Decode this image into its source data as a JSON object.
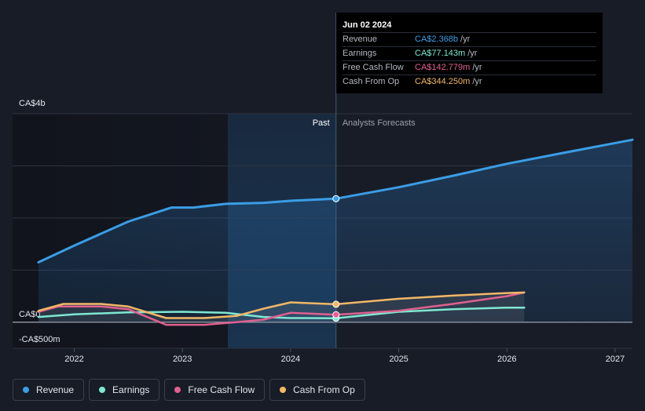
{
  "tooltip": {
    "date": "Jun 02 2024",
    "rows": [
      {
        "label": "Revenue",
        "value": "CA$2.368b",
        "unit": "/yr",
        "color": "#3b9de6"
      },
      {
        "label": "Earnings",
        "value": "CA$77.143m",
        "unit": "/yr",
        "color": "#7ee8d2"
      },
      {
        "label": "Free Cash Flow",
        "value": "CA$142.779m",
        "unit": "/yr",
        "color": "#e0608f"
      },
      {
        "label": "Cash From Op",
        "value": "CA$344.250m",
        "unit": "/yr",
        "color": "#f2b866"
      }
    ]
  },
  "regions": {
    "past_label": "Past",
    "forecast_label": "Analysts Forecasts"
  },
  "legend": [
    {
      "label": "Revenue",
      "color": "#3b9de6"
    },
    {
      "label": "Earnings",
      "color": "#7ee8d2"
    },
    {
      "label": "Free Cash Flow",
      "color": "#e0608f"
    },
    {
      "label": "Cash From Op",
      "color": "#f2b866"
    }
  ],
  "chart_data": {
    "type": "line",
    "ylim": [
      -0.5,
      4.0
    ],
    "xlim": [
      2021.43,
      2027.16
    ],
    "divider_x": 2024.42,
    "highlight_start_x": 2023.42,
    "y_tick_labels": [
      {
        "value": 4.0,
        "label": "CA$4b"
      },
      {
        "value": 0.0,
        "label": "CA$0"
      },
      {
        "value": -0.5,
        "label": "-CA$500m"
      }
    ],
    "y_gridlines": [
      4.0,
      3.0,
      2.0,
      1.0,
      0.0
    ],
    "x_ticks": [
      {
        "value": 2022,
        "label": "2022"
      },
      {
        "value": 2023,
        "label": "2023"
      },
      {
        "value": 2024,
        "label": "2024"
      },
      {
        "value": 2025,
        "label": "2025"
      },
      {
        "value": 2026,
        "label": "2026"
      },
      {
        "value": 2027,
        "label": "2027"
      }
    ],
    "series": [
      {
        "name": "Revenue",
        "color": "#3b9de6",
        "area": true,
        "marker_x": 2024.42,
        "points": [
          [
            2021.67,
            1.15
          ],
          [
            2022.0,
            1.47
          ],
          [
            2022.5,
            1.93
          ],
          [
            2022.9,
            2.2
          ],
          [
            2023.1,
            2.2
          ],
          [
            2023.4,
            2.27
          ],
          [
            2023.75,
            2.29
          ],
          [
            2024.0,
            2.33
          ],
          [
            2024.42,
            2.37
          ],
          [
            2025.0,
            2.59
          ],
          [
            2025.5,
            2.81
          ],
          [
            2026.0,
            3.04
          ],
          [
            2026.5,
            3.24
          ],
          [
            2027.16,
            3.5
          ]
        ]
      },
      {
        "name": "Earnings",
        "color": "#7ee8d2",
        "area": false,
        "marker_x": 2024.42,
        "points": [
          [
            2021.67,
            0.1
          ],
          [
            2022.0,
            0.15
          ],
          [
            2022.5,
            0.19
          ],
          [
            2023.0,
            0.2
          ],
          [
            2023.4,
            0.18
          ],
          [
            2023.75,
            0.1
          ],
          [
            2024.0,
            0.08
          ],
          [
            2024.42,
            0.077
          ],
          [
            2025.0,
            0.2
          ],
          [
            2025.5,
            0.25
          ],
          [
            2026.0,
            0.28
          ],
          [
            2026.16,
            0.28
          ]
        ]
      },
      {
        "name": "Free Cash Flow",
        "color": "#e0608f",
        "area": false,
        "marker_x": 2024.42,
        "points": [
          [
            2021.67,
            0.2
          ],
          [
            2021.85,
            0.3
          ],
          [
            2022.25,
            0.3
          ],
          [
            2022.5,
            0.25
          ],
          [
            2022.85,
            -0.05
          ],
          [
            2023.2,
            -0.05
          ],
          [
            2023.5,
            0.0
          ],
          [
            2023.75,
            0.05
          ],
          [
            2024.0,
            0.18
          ],
          [
            2024.42,
            0.143
          ],
          [
            2025.0,
            0.22
          ],
          [
            2025.5,
            0.35
          ],
          [
            2026.0,
            0.5
          ],
          [
            2026.16,
            0.57
          ]
        ]
      },
      {
        "name": "Cash From Op",
        "color": "#f2b866",
        "area": false,
        "marker_x": 2024.42,
        "points": [
          [
            2021.67,
            0.22
          ],
          [
            2021.9,
            0.35
          ],
          [
            2022.25,
            0.35
          ],
          [
            2022.5,
            0.3
          ],
          [
            2022.85,
            0.08
          ],
          [
            2023.2,
            0.08
          ],
          [
            2023.5,
            0.12
          ],
          [
            2023.75,
            0.26
          ],
          [
            2024.0,
            0.38
          ],
          [
            2024.42,
            0.344
          ],
          [
            2025.0,
            0.45
          ],
          [
            2025.5,
            0.51
          ],
          [
            2026.0,
            0.56
          ],
          [
            2026.16,
            0.57
          ]
        ]
      }
    ]
  }
}
